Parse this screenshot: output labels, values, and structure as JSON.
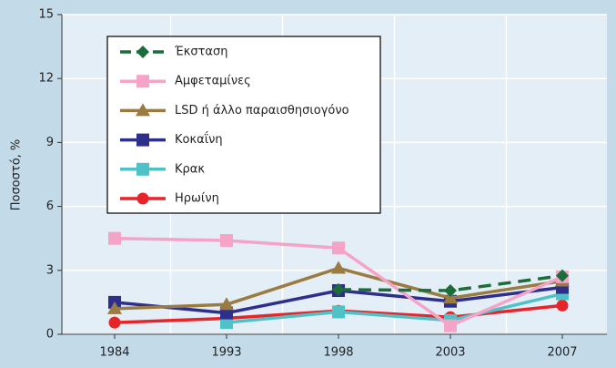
{
  "chart_data": {
    "type": "line",
    "y_label": "Ποσοστό, %",
    "categories": [
      "1984",
      "1993",
      "1998",
      "2003",
      "2007"
    ],
    "ylim": [
      0,
      15
    ],
    "yticks": [
      0,
      3,
      6,
      9,
      12,
      15
    ],
    "grid": true,
    "series": [
      {
        "name": "Έκσταση",
        "color": "#1b6e3c",
        "marker": "diamond",
        "dashed": true,
        "values": [
          null,
          null,
          2.1,
          2.05,
          2.75
        ]
      },
      {
        "name": "Αμφεταμίνες",
        "color": "#f5a3c7",
        "marker": "square",
        "values": [
          4.5,
          4.4,
          4.05,
          0.4,
          2.7
        ]
      },
      {
        "name": "LSD ή άλλο παραισθησιογόνο",
        "color": "#9a7b41",
        "marker": "triangle",
        "values": [
          1.2,
          1.4,
          3.1,
          1.7,
          2.5
        ]
      },
      {
        "name": "Κοκαΐνη",
        "color": "#2e2e8c",
        "marker": "square",
        "values": [
          1.5,
          1.0,
          2.05,
          1.55,
          2.2
        ]
      },
      {
        "name": "Κρακ",
        "color": "#4fc2c7",
        "marker": "square",
        "values": [
          null,
          0.55,
          1.05,
          0.65,
          1.9
        ]
      },
      {
        "name": "Ηρωίνη",
        "color": "#e8242b",
        "marker": "circle",
        "values": [
          0.55,
          0.75,
          1.1,
          0.8,
          1.35
        ]
      }
    ]
  }
}
